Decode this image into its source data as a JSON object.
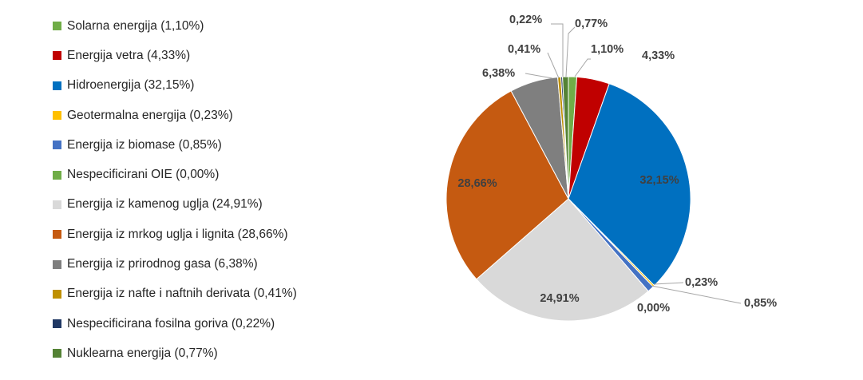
{
  "chart_data": {
    "type": "pie",
    "title": "",
    "legend_position": "left",
    "slices": [
      {
        "label": "Solarna energija",
        "value": 1.1,
        "display": "1,10%",
        "legend": "Solarna energija (1,10%)",
        "color": "#70ad47"
      },
      {
        "label": "Energija vetra",
        "value": 4.33,
        "display": "4,33%",
        "legend": "Energija vetra (4,33%)",
        "color": "#c00000"
      },
      {
        "label": "Hidroenergija",
        "value": 32.15,
        "display": "32,15%",
        "legend": "Hidroenergija (32,15%)",
        "color": "#0070c0"
      },
      {
        "label": "Geotermalna energija",
        "value": 0.23,
        "display": "0,23%",
        "legend": "Geotermalna energija (0,23%)",
        "color": "#ffc000"
      },
      {
        "label": "Energija iz biomase",
        "value": 0.85,
        "display": "0,85%",
        "legend": "Energija iz biomase (0,85%)",
        "color": "#4472c4"
      },
      {
        "label": "Nespecificirani OIE",
        "value": 0.0,
        "display": "0,00%",
        "legend": "Nespecificirani OIE (0,00%)",
        "color": "#70ad47"
      },
      {
        "label": "Energija iz kamenog uglja",
        "value": 24.91,
        "display": "24,91%",
        "legend": "Energija iz kamenog uglja (24,91%)",
        "color": "#d9d9d9"
      },
      {
        "label": "Energija iz mrkog uglja i lignita",
        "value": 28.66,
        "display": "28,66%",
        "legend": "Energija iz mrkog uglja i lignita (28,66%)",
        "color": "#c55a11"
      },
      {
        "label": "Energija iz prirodnog gasa",
        "value": 6.38,
        "display": "6,38%",
        "legend": "Energija iz prirodnog gasa (6,38%)",
        "color": "#7f7f7f"
      },
      {
        "label": "Energija iz nafte i naftnih derivata",
        "value": 0.41,
        "display": "0,41%",
        "legend": "Energija iz nafte i naftnih derivata (0,41%)",
        "color": "#bf9000"
      },
      {
        "label": "Nespecificirana fosilna goriva",
        "value": 0.22,
        "display": "0,22%",
        "legend": "Nespecificirana fosilna goriva (0,22%)",
        "color": "#203864"
      },
      {
        "label": "Nuklearna energija",
        "value": 0.77,
        "display": "0,77%",
        "legend": "Nuklearna energija (0,77%)",
        "color": "#548235"
      }
    ]
  }
}
